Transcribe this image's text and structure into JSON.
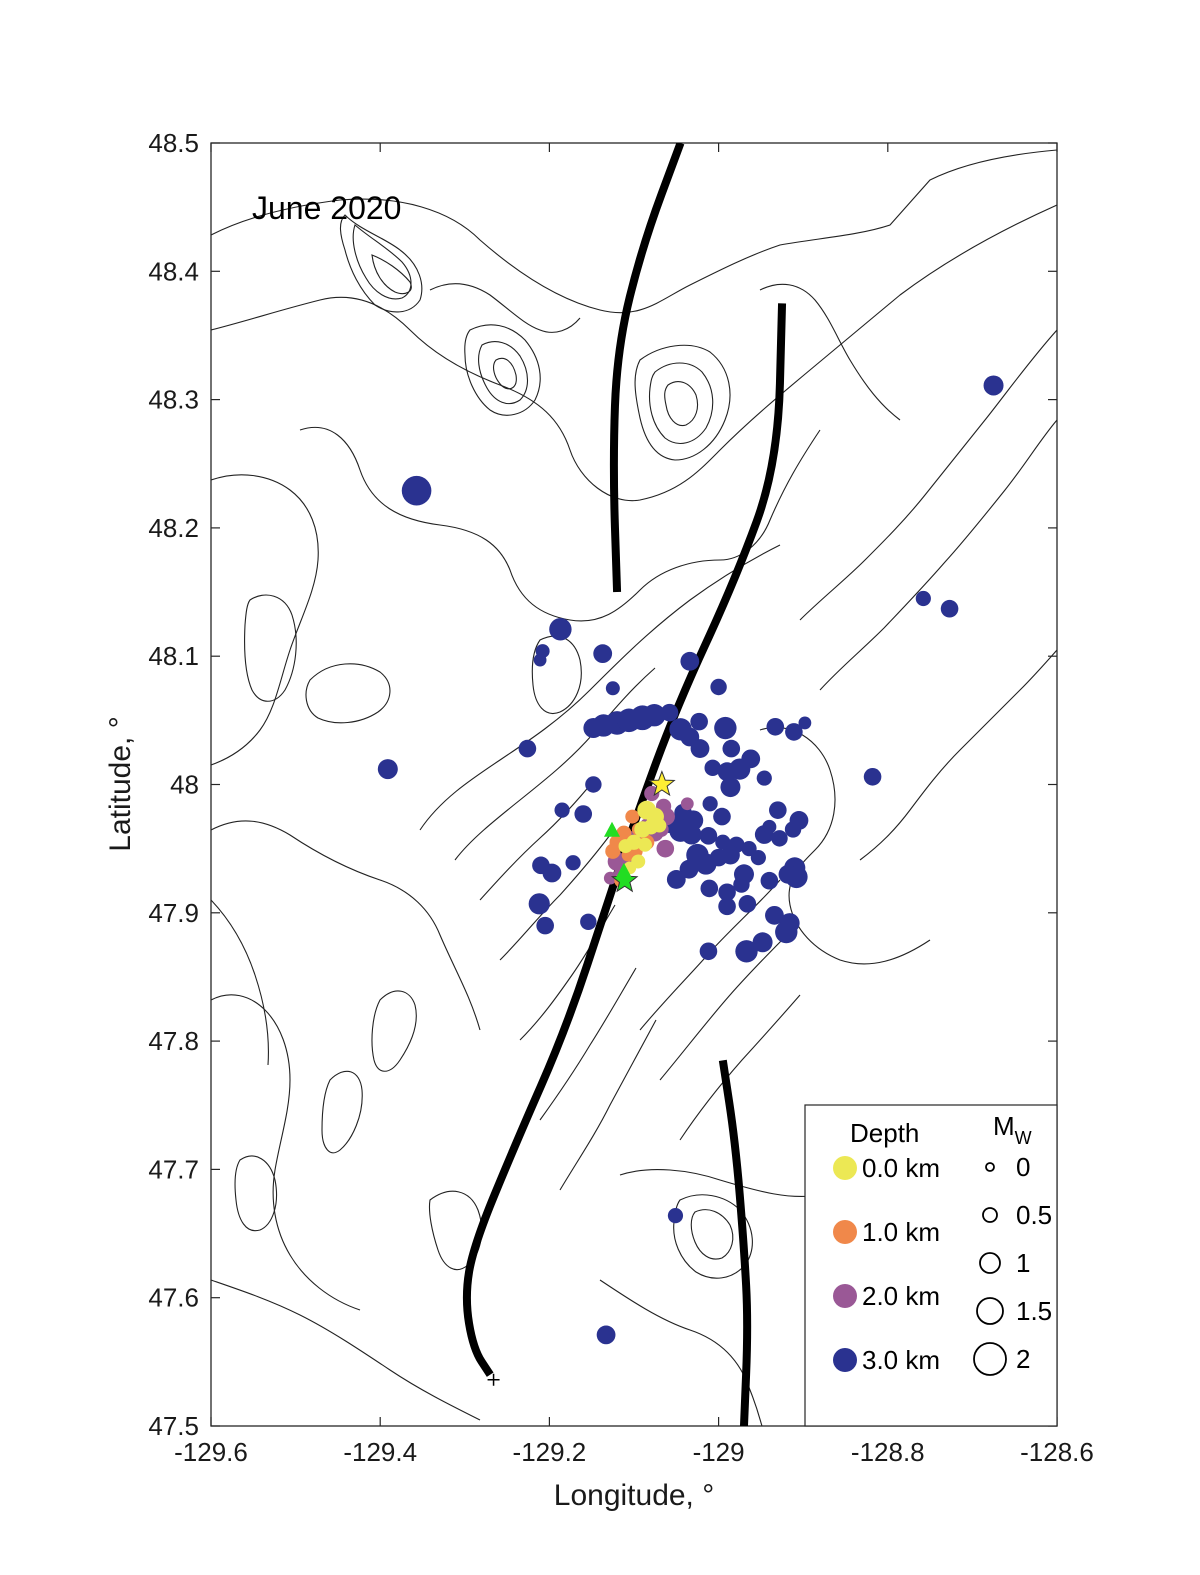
{
  "chart_data": {
    "type": "scatter",
    "annotation": "June 2020",
    "xlabel": "Longitude, °",
    "ylabel": "Latitude, °",
    "xlim": [
      -129.6,
      -128.6
    ],
    "ylim": [
      47.5,
      48.5
    ],
    "xticks": [
      "-129.6",
      "-129.4",
      "-129.2",
      "-129",
      "-128.8",
      "-128.6"
    ],
    "yticks": [
      "47.5",
      "47.6",
      "47.7",
      "47.8",
      "47.9",
      "48",
      "48.1",
      "48.2",
      "48.3",
      "48.4",
      "48.5"
    ],
    "colors": {
      "d0": "#ece854",
      "d1": "#f0884a",
      "d2": "#9a5896",
      "d3": "#2a3290",
      "green": "#22dd22",
      "yellow": "#ffee33",
      "axis": "#262626",
      "fault": "#000000"
    },
    "legend": {
      "depth_title": "Depth",
      "mw_title": "M",
      "mw_subscript": "W",
      "depth_items": [
        {
          "label": "0.0 km",
          "color": "d0"
        },
        {
          "label": "1.0 km",
          "color": "d1"
        },
        {
          "label": "2.0 km",
          "color": "d2"
        },
        {
          "label": "3.0 km",
          "color": "d3"
        }
      ],
      "mw_items": [
        {
          "label": "0",
          "mw": 0
        },
        {
          "label": "0.5",
          "mw": 0.5
        },
        {
          "label": "1",
          "mw": 1
        },
        {
          "label": "1.5",
          "mw": 1.5
        },
        {
          "label": "2",
          "mw": 2
        }
      ]
    },
    "faults": [
      [
        [
          -129.045,
          48.5
        ],
        [
          -129.09,
          48.42
        ],
        [
          -129.12,
          48.34
        ],
        [
          -129.125,
          48.25
        ],
        [
          -129.12,
          48.15
        ]
      ],
      [
        [
          -128.925,
          48.375
        ],
        [
          -128.93,
          48.25
        ],
        [
          -128.98,
          48.16
        ],
        [
          -129.05,
          48.06
        ],
        [
          -129.1,
          47.97
        ],
        [
          -129.13,
          47.91
        ],
        [
          -129.18,
          47.81
        ],
        [
          -129.24,
          47.72
        ],
        [
          -129.29,
          47.64
        ],
        [
          -129.3,
          47.6
        ],
        [
          -129.29,
          47.56
        ],
        [
          -129.27,
          47.54
        ]
      ],
      [
        [
          -128.995,
          47.785
        ],
        [
          -128.98,
          47.72
        ],
        [
          -128.97,
          47.64
        ],
        [
          -128.965,
          47.58
        ],
        [
          -128.97,
          47.5
        ]
      ]
    ],
    "series": [
      {
        "name": "3.0 km",
        "color": "d3",
        "points": [
          [
            -128.675,
            48.311,
            1.0
          ],
          [
            -129.357,
            48.229,
            1.8
          ],
          [
            -128.758,
            48.145,
            0.6
          ],
          [
            -128.727,
            48.137,
            0.8
          ],
          [
            -129.187,
            48.121,
            1.2
          ],
          [
            -129.208,
            48.104,
            0.5
          ],
          [
            -129.211,
            48.097,
            0.4
          ],
          [
            -129.137,
            48.102,
            0.9
          ],
          [
            -129.034,
            48.096,
            0.9
          ],
          [
            -129.125,
            48.075,
            0.5
          ],
          [
            -129.0,
            48.076,
            0.7
          ],
          [
            -129.226,
            48.028,
            0.8
          ],
          [
            -129.391,
            48.012,
            1.0
          ],
          [
            -128.818,
            48.006,
            0.8
          ],
          [
            -128.898,
            48.048,
            0.4
          ],
          [
            -129.148,
            48.044,
            1.0
          ],
          [
            -129.136,
            48.046,
            1.2
          ],
          [
            -129.12,
            48.048,
            1.3
          ],
          [
            -129.106,
            48.05,
            1.3
          ],
          [
            -129.09,
            48.052,
            1.4
          ],
          [
            -129.076,
            48.054,
            1.2
          ],
          [
            -129.058,
            48.056,
            0.8
          ],
          [
            -129.045,
            48.043,
            1.2
          ],
          [
            -129.034,
            48.037,
            0.9
          ],
          [
            -129.022,
            48.028,
            0.9
          ],
          [
            -129.023,
            48.049,
            0.8
          ],
          [
            -128.992,
            48.044,
            1.2
          ],
          [
            -128.985,
            48.028,
            0.8
          ],
          [
            -128.99,
            48.01,
            0.9
          ],
          [
            -128.975,
            48.012,
            1.1
          ],
          [
            -128.986,
            47.998,
            1.0
          ],
          [
            -128.962,
            48.02,
            0.9
          ],
          [
            -128.933,
            48.045,
            0.8
          ],
          [
            -128.911,
            48.041,
            0.8
          ],
          [
            -128.946,
            48.005,
            0.6
          ],
          [
            -129.007,
            48.013,
            0.7
          ],
          [
            -129.01,
            47.985,
            0.6
          ],
          [
            -128.996,
            47.975,
            0.8
          ],
          [
            -129.042,
            47.978,
            0.8
          ],
          [
            -129.03,
            47.972,
            1.0
          ],
          [
            -129.058,
            47.97,
            1.0
          ],
          [
            -129.045,
            47.964,
            1.2
          ],
          [
            -129.032,
            47.961,
            1.0
          ],
          [
            -129.012,
            47.96,
            0.8
          ],
          [
            -128.995,
            47.955,
            0.6
          ],
          [
            -128.979,
            47.953,
            0.7
          ],
          [
            -128.964,
            47.95,
            0.6
          ],
          [
            -128.946,
            47.961,
            0.9
          ],
          [
            -128.928,
            47.958,
            0.7
          ],
          [
            -128.94,
            47.967,
            0.5
          ],
          [
            -128.93,
            47.98,
            0.8
          ],
          [
            -128.912,
            47.965,
            0.7
          ],
          [
            -128.953,
            47.943,
            0.6
          ],
          [
            -128.905,
            47.972,
            0.9
          ],
          [
            -129.025,
            47.945,
            1.2
          ],
          [
            -129.015,
            47.938,
            1.1
          ],
          [
            -129.0,
            47.943,
            0.8
          ],
          [
            -128.986,
            47.945,
            0.9
          ],
          [
            -129.035,
            47.934,
            0.9
          ],
          [
            -128.97,
            47.93,
            1.0
          ],
          [
            -128.91,
            47.935,
            1.1
          ],
          [
            -128.908,
            47.928,
            1.2
          ],
          [
            -128.918,
            47.93,
            0.9
          ],
          [
            -128.94,
            47.925,
            0.8
          ],
          [
            -129.05,
            47.926,
            0.9
          ],
          [
            -129.011,
            47.919,
            0.8
          ],
          [
            -128.99,
            47.916,
            0.8
          ],
          [
            -128.973,
            47.922,
            0.7
          ],
          [
            -129.172,
            47.939,
            0.6
          ],
          [
            -129.21,
            47.937,
            0.8
          ],
          [
            -129.197,
            47.931,
            0.9
          ],
          [
            -129.212,
            47.907,
            1.1
          ],
          [
            -129.205,
            47.89,
            0.8
          ],
          [
            -129.154,
            47.893,
            0.7
          ],
          [
            -129.16,
            47.977,
            0.8
          ],
          [
            -129.185,
            47.98,
            0.6
          ],
          [
            -129.148,
            48.0,
            0.7
          ],
          [
            -128.99,
            47.905,
            0.8
          ],
          [
            -128.966,
            47.907,
            0.8
          ],
          [
            -128.948,
            47.877,
            1.0
          ],
          [
            -128.934,
            47.898,
            0.9
          ],
          [
            -128.916,
            47.892,
            1.0
          ],
          [
            -128.92,
            47.885,
            1.2
          ],
          [
            -128.967,
            47.87,
            1.2
          ],
          [
            -129.012,
            47.87,
            0.8
          ],
          [
            -129.051,
            47.664,
            0.6
          ],
          [
            -129.133,
            47.571,
            0.9
          ]
        ]
      },
      {
        "name": "2.0 km",
        "color": "d2",
        "points": [
          [
            -129.079,
            47.993,
            0.6
          ],
          [
            -129.037,
            47.985,
            0.4
          ],
          [
            -129.065,
            47.983,
            0.6
          ],
          [
            -129.062,
            47.975,
            0.8
          ],
          [
            -129.068,
            47.965,
            0.6
          ],
          [
            -129.075,
            47.962,
            0.7
          ],
          [
            -129.085,
            47.968,
            0.5
          ],
          [
            -129.063,
            47.95,
            0.8
          ],
          [
            -129.09,
            47.958,
            0.5
          ],
          [
            -129.1,
            47.942,
            0.7
          ],
          [
            -129.12,
            47.94,
            0.9
          ],
          [
            -129.115,
            47.93,
            0.6
          ],
          [
            -129.11,
            47.935,
            0.6
          ],
          [
            -129.128,
            47.927,
            0.4
          ],
          [
            -129.106,
            47.958,
            0.6
          ]
        ]
      },
      {
        "name": "1.0 km",
        "color": "d1",
        "points": [
          [
            -129.102,
            47.975,
            0.5
          ],
          [
            -129.112,
            47.962,
            0.6
          ],
          [
            -129.12,
            47.955,
            0.6
          ],
          [
            -129.098,
            47.948,
            0.5
          ],
          [
            -129.085,
            47.955,
            0.6
          ],
          [
            -129.107,
            47.945,
            0.4
          ],
          [
            -129.125,
            47.948,
            0.6
          ],
          [
            -129.115,
            47.925,
            0.5
          ],
          [
            -129.095,
            47.965,
            0.4
          ]
        ]
      },
      {
        "name": "0.0 km",
        "color": "d0",
        "points": [
          [
            -129.085,
            47.98,
            0.9
          ],
          [
            -129.075,
            47.975,
            0.8
          ],
          [
            -129.08,
            47.967,
            0.6
          ],
          [
            -129.09,
            47.965,
            0.7
          ],
          [
            -129.07,
            47.968,
            0.5
          ],
          [
            -129.1,
            47.955,
            0.6
          ],
          [
            -129.087,
            47.953,
            0.5
          ],
          [
            -129.11,
            47.952,
            0.5
          ],
          [
            -129.105,
            47.935,
            0.4
          ],
          [
            -129.095,
            47.94,
            0.5
          ]
        ]
      }
    ],
    "markers": [
      {
        "type": "star",
        "lon": -129.067,
        "lat": 48.0,
        "color": "yellow"
      },
      {
        "type": "star",
        "lon": -129.111,
        "lat": 47.925,
        "color": "green"
      },
      {
        "type": "triangle",
        "lon": -129.126,
        "lat": 47.964,
        "color": "green"
      },
      {
        "type": "triangle",
        "lon": -129.112,
        "lat": 47.932,
        "color": "green"
      },
      {
        "type": "plus",
        "lon": -129.266,
        "lat": 47.536,
        "color": "fault"
      }
    ]
  }
}
